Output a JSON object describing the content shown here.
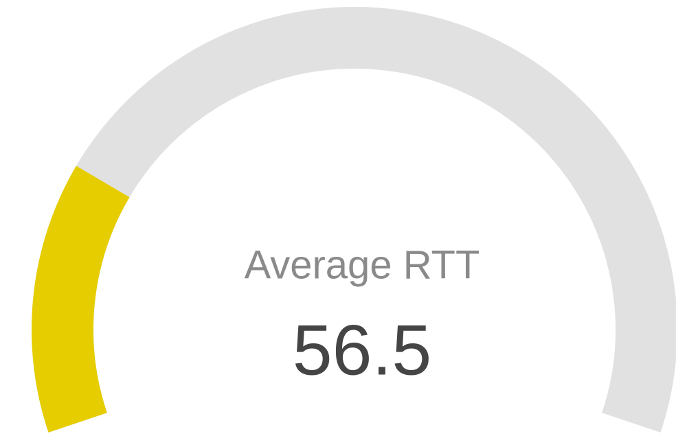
{
  "chart_data": {
    "type": "gauge",
    "title": "Average RTT",
    "value": 56.5,
    "ylim": [
      0,
      250
    ],
    "color": "#e5cd00",
    "track_color": "#e1e1e1"
  }
}
